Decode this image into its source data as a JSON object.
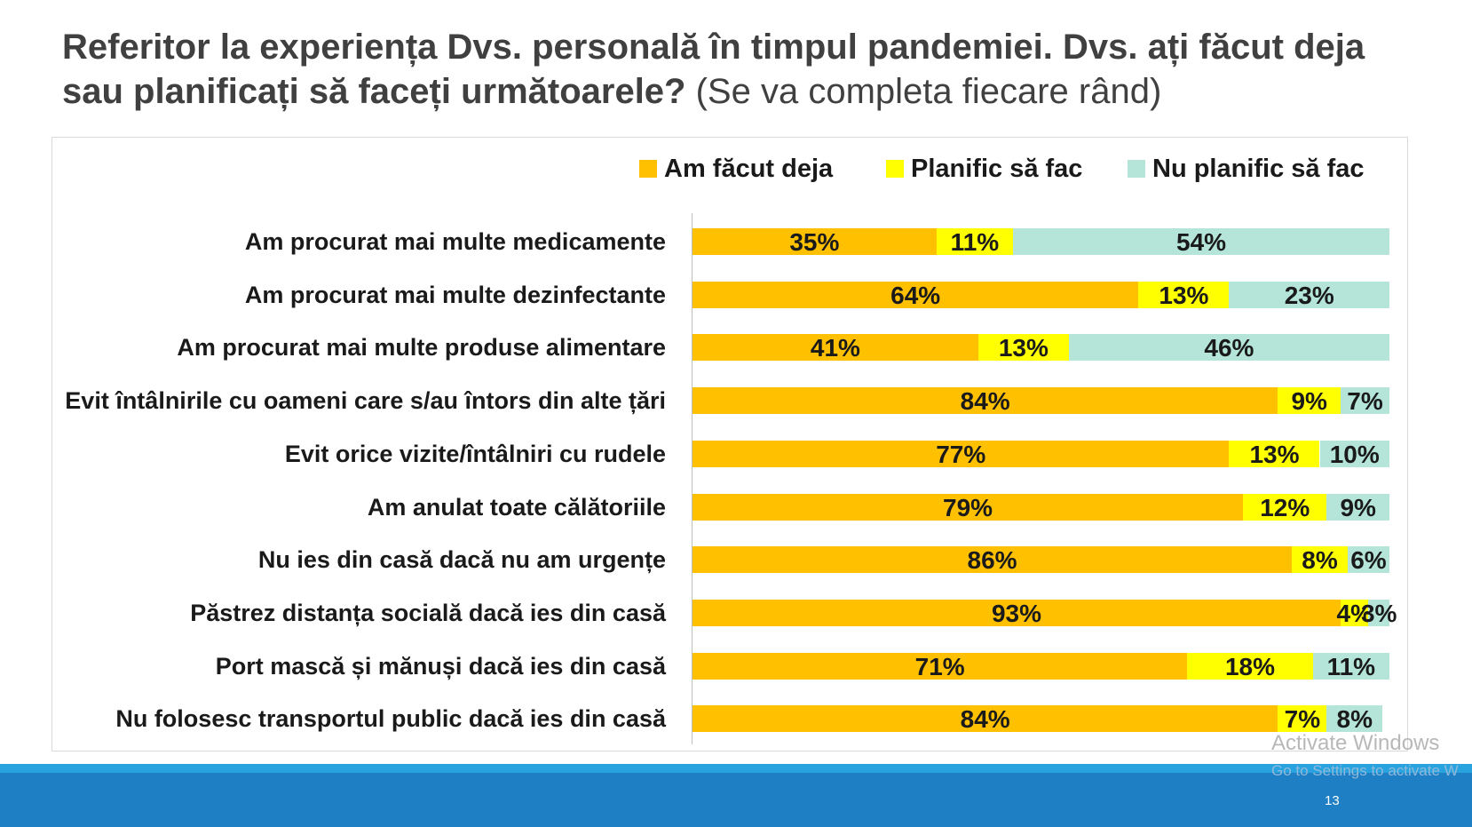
{
  "title": {
    "bold": "Referitor la experiența Dvs. personală în timpul pandemiei. Dvs. ați făcut deja sau planificați să faceți următoarele?",
    "note": "(Se va completa fiecare rând)"
  },
  "colors": {
    "done": "#FFC000",
    "plan": "#FFFF00",
    "no_plan": "#B4E5D8"
  },
  "chart_data": {
    "type": "bar",
    "orientation": "horizontal",
    "stacked": true,
    "percent_stacked": true,
    "legend_position": "top-right",
    "categories": [
      "Am procurat mai multe medicamente",
      "Am procurat mai multe dezinfectante",
      "Am procurat mai multe produse alimentare",
      "Evit întâlnirile cu oameni care s/au întors din alte țări",
      "Evit orice vizite/întâlniri cu rudele",
      "Am anulat toate călătoriile",
      "Nu ies din casă dacă nu am urgențe",
      "Păstrez distanța socială dacă ies din casă",
      "Port mască și mănuși dacă ies din casă",
      "Nu folosesc transportul public dacă ies din casă"
    ],
    "series": [
      {
        "name": "Am făcut deja",
        "values": [
          35,
          64,
          41,
          84,
          77,
          79,
          86,
          93,
          71,
          84
        ]
      },
      {
        "name": "Planific să fac",
        "values": [
          11,
          13,
          13,
          9,
          13,
          12,
          8,
          4,
          18,
          7
        ]
      },
      {
        "name": "Nu planific să fac",
        "values": [
          54,
          23,
          46,
          7,
          10,
          9,
          6,
          3,
          11,
          8
        ]
      }
    ],
    "value_suffix": "%"
  },
  "footer": {
    "page_number": "13",
    "watermark_line1": "Activate Windows",
    "watermark_line2": "Go to Settings to activate W"
  }
}
